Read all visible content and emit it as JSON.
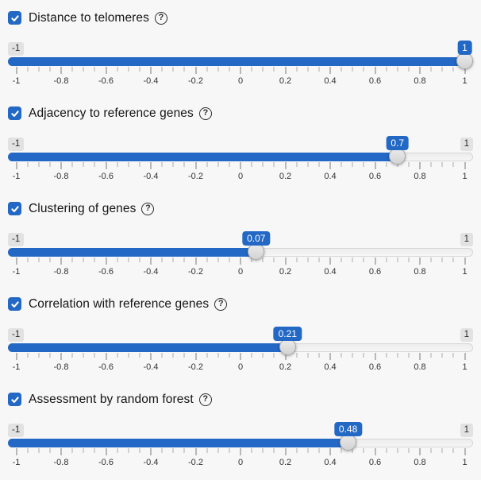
{
  "page": {
    "background_color": "#f7f7f7",
    "accent_color": "#2368c4"
  },
  "icons": {
    "help_glyph": "?",
    "check_glyph": "checkmark"
  },
  "grid": {
    "labels": [
      "-1",
      "-0.8",
      "-0.6",
      "-0.4",
      "-0.2",
      "0",
      "0.2",
      "0.4",
      "0.6",
      "0.8",
      "1"
    ],
    "minor_divisions": 40,
    "major_every": 4
  },
  "sliders": [
    {
      "label": "Distance to telomeres",
      "checked": true,
      "min": -1,
      "max": 1,
      "value": 1,
      "value_label": "1",
      "min_label": "-1",
      "max_label": "1",
      "max_label_visible": false
    },
    {
      "label": "Adjacency to reference genes",
      "checked": true,
      "min": -1,
      "max": 1,
      "value": 0.7,
      "value_label": "0.7",
      "min_label": "-1",
      "max_label": "1",
      "max_label_visible": true
    },
    {
      "label": "Clustering of genes",
      "checked": true,
      "min": -1,
      "max": 1,
      "value": 0.07,
      "value_label": "0.07",
      "min_label": "-1",
      "max_label": "1",
      "max_label_visible": true
    },
    {
      "label": "Correlation with reference genes",
      "checked": true,
      "min": -1,
      "max": 1,
      "value": 0.21,
      "value_label": "0.21",
      "min_label": "-1",
      "max_label": "1",
      "max_label_visible": true
    },
    {
      "label": "Assessment by random forest",
      "checked": true,
      "min": -1,
      "max": 1,
      "value": 0.48,
      "value_label": "0.48",
      "min_label": "-1",
      "max_label": "1",
      "max_label_visible": true
    }
  ]
}
